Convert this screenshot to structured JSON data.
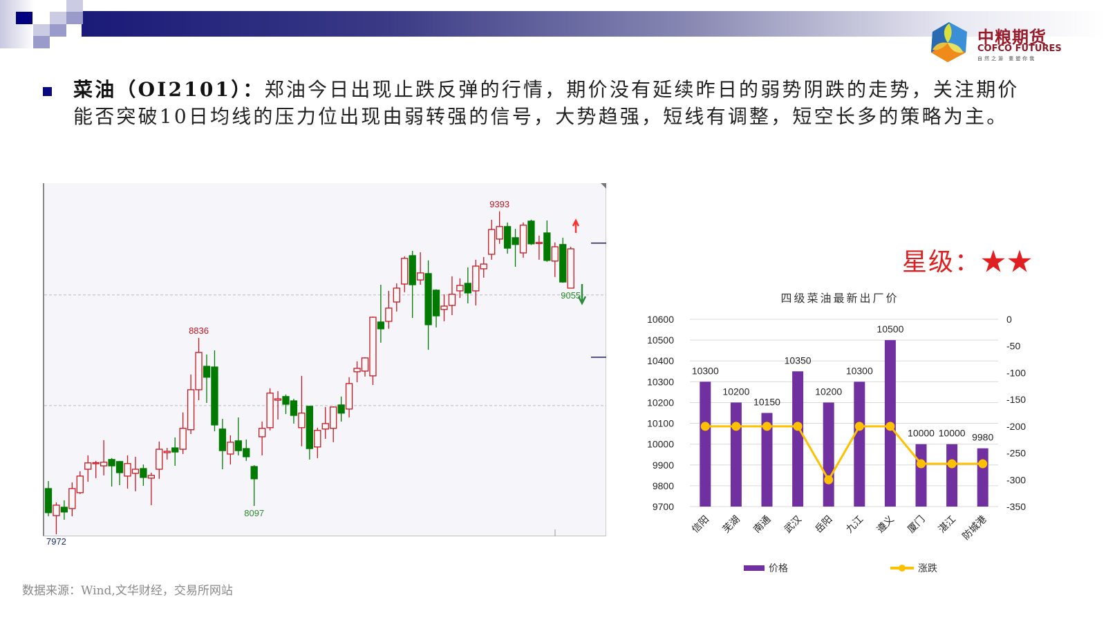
{
  "header": {
    "logo": {
      "name_cn": "中粮期货",
      "name_en": "COFCO FUTURES",
      "tagline": "自然之源 重塑你我"
    },
    "colors": {
      "banner_dark": "#1a1a78",
      "banner_light": "#ffffff"
    }
  },
  "commentary": {
    "title": "菜油（OI2101）：",
    "body": "郑油今日出现止跌反弹的行情，期价没有延续昨日的弱势阴跌的走势，关注期价能否突破10日均线的压力位出现由弱转强的信号，大势趋强，短线有调整，短空长多的策略为主。"
  },
  "rating": {
    "label": "星级：",
    "stars": 2,
    "star_glyph": "★",
    "color": "#e02020"
  },
  "source": "数据来源：Wind,文华财经，交易所网站",
  "chart_data": [
    {
      "type": "candlestick",
      "ylim": [
        7963,
        9517
      ],
      "up_color": "#c8141e",
      "down_color": "#007a00",
      "candle_fields": [
        "open",
        "high",
        "low",
        "close"
      ],
      "candles": [
        [
          8173,
          8206,
          8051,
          8067
        ],
        [
          8054,
          8112,
          7972,
          8100
        ],
        [
          8091,
          8121,
          8036,
          8070
        ],
        [
          8085,
          8200,
          8051,
          8173
        ],
        [
          8155,
          8249,
          8149,
          8228
        ],
        [
          8258,
          8319,
          8203,
          8286
        ],
        [
          8284,
          8295,
          8219,
          8287
        ],
        [
          8273,
          8386,
          8231,
          8289
        ],
        [
          8301,
          8307,
          8182,
          8273
        ],
        [
          8292,
          8295,
          8188,
          8243
        ],
        [
          8228,
          8319,
          8173,
          8283
        ],
        [
          8240,
          8313,
          8161,
          8258
        ],
        [
          8261,
          8279,
          8185,
          8222
        ],
        [
          8219,
          8243,
          8100,
          8231
        ],
        [
          8258,
          8380,
          8216,
          8346
        ],
        [
          8331,
          8352,
          8301,
          8337
        ],
        [
          8352,
          8398,
          8273,
          8334
        ],
        [
          8346,
          8508,
          8325,
          8438
        ],
        [
          8432,
          8675,
          8413,
          8608
        ],
        [
          8608,
          8836,
          8562,
          8772
        ],
        [
          8711,
          8763,
          8550,
          8663
        ],
        [
          8708,
          8781,
          8425,
          8453
        ],
        [
          8435,
          8480,
          8258,
          8340
        ],
        [
          8325,
          8407,
          8279,
          8377
        ],
        [
          8383,
          8486,
          8319,
          8340
        ],
        [
          8349,
          8389,
          8295,
          8313
        ],
        [
          8270,
          8276,
          8097,
          8216
        ],
        [
          8401,
          8468,
          8319,
          8438
        ],
        [
          8441,
          8614,
          8429,
          8593
        ],
        [
          8562,
          8602,
          8477,
          8568
        ],
        [
          8578,
          8587,
          8501,
          8544
        ],
        [
          8559,
          8568,
          8459,
          8495
        ],
        [
          8441,
          8669,
          8359,
          8505
        ],
        [
          8535,
          8538,
          8301,
          8349
        ],
        [
          8356,
          8441,
          8307,
          8429
        ],
        [
          8435,
          8532,
          8392,
          8459
        ],
        [
          8438,
          8535,
          8377,
          8532
        ],
        [
          8541,
          8578,
          8468,
          8505
        ],
        [
          8523,
          8663,
          8486,
          8635
        ],
        [
          8687,
          8733,
          8641,
          8702
        ],
        [
          8690,
          8751,
          8666,
          8748
        ],
        [
          8669,
          8930,
          8629,
          8927
        ],
        [
          8906,
          9070,
          8815,
          8876
        ],
        [
          8909,
          9043,
          8876,
          8967
        ],
        [
          8994,
          9076,
          8952,
          9055
        ],
        [
          9073,
          9195,
          9037,
          9186
        ],
        [
          9198,
          9219,
          8924,
          9070
        ],
        [
          9091,
          9213,
          9070,
          9122
        ],
        [
          9119,
          9177,
          8784,
          8894
        ],
        [
          9046,
          9050,
          8882,
          8933
        ],
        [
          8961,
          9028,
          8909,
          8976
        ],
        [
          8979,
          9107,
          8936,
          9028
        ],
        [
          9043,
          9098,
          9012,
          9067
        ],
        [
          9076,
          9146,
          8988,
          9034
        ],
        [
          9043,
          9180,
          8979,
          9152
        ],
        [
          9140,
          9192,
          9101,
          9161
        ],
        [
          9204,
          9356,
          9180,
          9313
        ],
        [
          9271,
          9393,
          9250,
          9326
        ],
        [
          9326,
          9344,
          9207,
          9231
        ],
        [
          9277,
          9316,
          9149,
          9247
        ],
        [
          9210,
          9344,
          9189,
          9332
        ],
        [
          9350,
          9356,
          9245,
          9250
        ],
        [
          9253,
          9286,
          9180,
          9256
        ],
        [
          9298,
          9353,
          9171,
          9177
        ],
        [
          9174,
          9256,
          9104,
          9237
        ],
        [
          9247,
          9277,
          9079,
          9082
        ],
        [
          9055,
          9237,
          9055,
          9228
        ]
      ],
      "annotations": [
        {
          "text": "7972",
          "candle": 1,
          "at": "low",
          "color": "#1a2a7a"
        },
        {
          "text": "8836",
          "candle": 19,
          "at": "high",
          "color": "#c8141e"
        },
        {
          "text": "8097",
          "candle": 26,
          "at": "low",
          "color": "#2a8a2a"
        },
        {
          "text": "9393",
          "candle": 57,
          "at": "high",
          "color": "#c8141e"
        },
        {
          "text": "9055",
          "candle": 66,
          "at": "low",
          "color": "#2a8a2a"
        }
      ],
      "reference_lines": [
        9025,
        8538
      ],
      "right_marks": [
        9253,
        8751
      ],
      "arrows": [
        {
          "direction": "up",
          "color": "#ff3030"
        },
        {
          "direction": "down",
          "color": "#2a8a3a"
        }
      ]
    },
    {
      "type": "bar+line",
      "title": "四级菜油最新出厂价",
      "categories": [
        "信阳",
        "芜湖",
        "南通",
        "武汉",
        "岳阳",
        "九江",
        "遵义",
        "厦门",
        "湛江",
        "防城港"
      ],
      "series": [
        {
          "name": "价格",
          "type": "bar",
          "axis": "left",
          "color": "#7030a0",
          "values": [
            10300,
            10200,
            10150,
            10350,
            10200,
            10300,
            10500,
            10000,
            10000,
            9980
          ]
        },
        {
          "name": "涨跌",
          "type": "line",
          "axis": "right",
          "color": "#ffc000",
          "values": [
            -200,
            -200,
            -200,
            -200,
            -300,
            -200,
            -200,
            -270,
            -270,
            -270
          ]
        }
      ],
      "ylim_left": [
        9700,
        10600
      ],
      "yticks_left": [
        9700,
        9800,
        9900,
        10000,
        10100,
        10200,
        10300,
        10400,
        10500,
        10600
      ],
      "ylim_right": [
        -350,
        0
      ],
      "yticks_right": [
        0,
        -50,
        -100,
        -150,
        -200,
        -250,
        -300,
        -350
      ],
      "grid": true,
      "legend": "bottom"
    }
  ]
}
